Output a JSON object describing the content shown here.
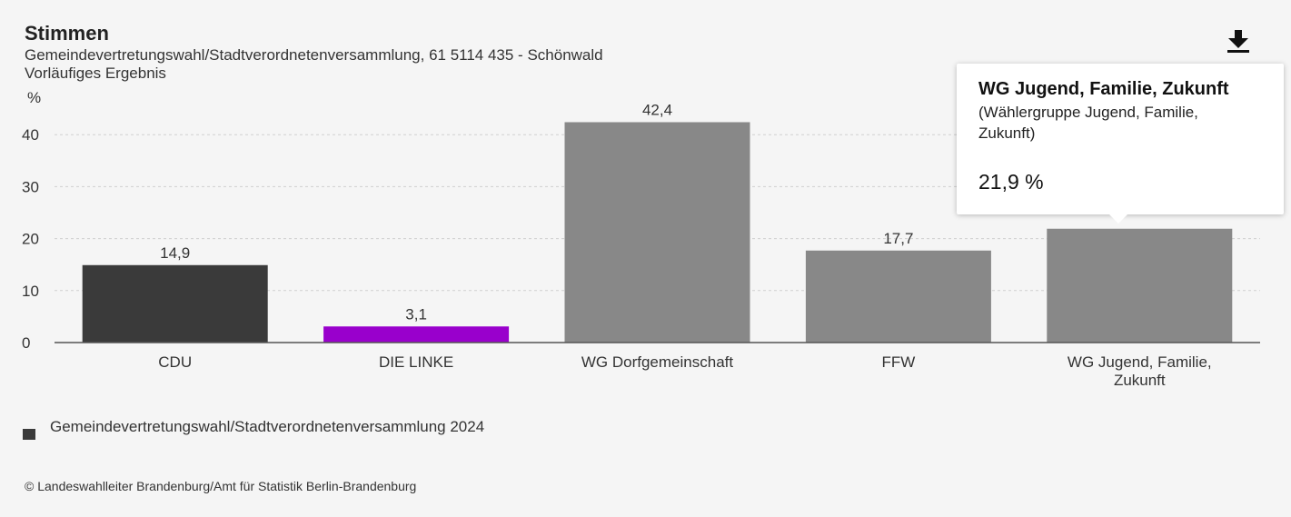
{
  "header": {
    "title": "Stimmen",
    "subtitle": "Gemeindevertretungswahl/Stadtverordnetenversammlung, 61 5114 435 - Schönwald",
    "subtitle2": "Vorläufiges Ergebnis",
    "download_icon": "download-icon"
  },
  "chart_data": {
    "type": "bar",
    "categories": [
      "CDU",
      "DIE LINKE",
      "WG Dorfgemeinschaft",
      "FFW",
      "WG Jugend, Familie, Zukunft"
    ],
    "category_label_lines": [
      [
        "CDU"
      ],
      [
        "DIE LINKE"
      ],
      [
        "WG Dorfgemeinschaft"
      ],
      [
        "FFW"
      ],
      [
        "WG Jugend, Familie,",
        "Zukunft"
      ]
    ],
    "series": [
      {
        "name": "Gemeindevertretungswahl/Stadtverordnetenversammlung 2024",
        "values": [
          14.9,
          3.1,
          42.4,
          17.7,
          21.9
        ]
      }
    ],
    "data_labels": [
      "14,9",
      "3,1",
      "42,4",
      "17,7",
      ""
    ],
    "colors": [
      "#3a3a3a",
      "#9900cc",
      "#888888",
      "#888888",
      "#888888"
    ],
    "ylabel": "%",
    "yticks": [
      0,
      10,
      20,
      30,
      40
    ],
    "ylim": [
      0,
      45
    ],
    "grid": true,
    "legend_position": "bottom-left"
  },
  "legend": {
    "label": "Gemeindevertretungswahl/Stadtverordnetenversammlung 2024",
    "color": "#3a3a3a"
  },
  "tooltip": {
    "title": "WG Jugend, Familie, Zukunft",
    "subtitle": "(Wählergruppe Jugend, Familie, Zukunft)",
    "value": "21,9 %"
  },
  "credit": "© Landeswahlleiter Brandenburg/Amt für Statistik Berlin-Brandenburg"
}
